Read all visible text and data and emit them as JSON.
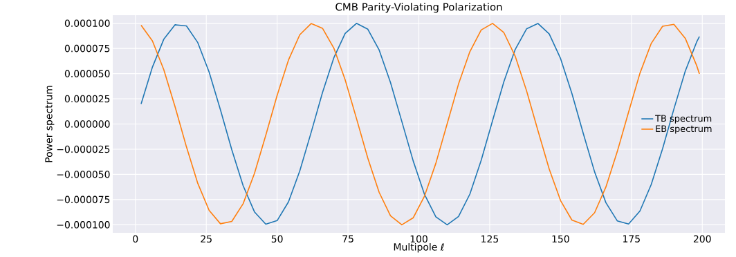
{
  "chart_data": {
    "type": "line",
    "title": "CMB Parity-Violating Polarization",
    "xlabel": "Multipole ℓ",
    "ylabel": "Power spectrum",
    "x": [
      2,
      6,
      10,
      14,
      18,
      22,
      26,
      30,
      34,
      38,
      42,
      46,
      50,
      54,
      58,
      62,
      66,
      70,
      74,
      78,
      82,
      86,
      90,
      94,
      98,
      102,
      106,
      110,
      114,
      118,
      122,
      126,
      130,
      134,
      138,
      142,
      146,
      150,
      154,
      158,
      162,
      166,
      170,
      174,
      178,
      182,
      186,
      190,
      194,
      198,
      199
    ],
    "series": [
      {
        "name": "TB spectrum",
        "color": "#1f77b4",
        "values": [
          1.99e-05,
          5.65e-05,
          8.41e-05,
          9.85e-05,
          9.74e-05,
          8.08e-05,
          5.16e-05,
          1.41e-05,
          -2.56e-05,
          -6.12e-05,
          -8.72e-05,
          -9.94e-05,
          -9.59e-05,
          -7.73e-05,
          -4.65e-05,
          -8.3e-06,
          3.12e-05,
          6.57e-05,
          8.99e-05,
          9.99e-05,
          9.41e-05,
          7.34e-05,
          4.12e-05,
          2.5e-06,
          -3.66e-05,
          -6.99e-05,
          -9.21e-05,
          -0.0001,
          -9.18e-05,
          -6.96e-05,
          -3.6e-05,
          3.3e-06,
          4.2e-05,
          7.4e-05,
          9.44e-05,
          9.98e-05,
          8.94e-05,
          6.5e-05,
          3.03e-05,
          -9.2e-06,
          -4.74e-05,
          -7.81e-05,
          -9.61e-05,
          -9.93e-05,
          -8.64e-05,
          -6e-05,
          -2.45e-05,
          1.5e-05,
          5.25e-05,
          8.13e-05,
          8.68e-05
        ]
      },
      {
        "name": "EB spectrum",
        "color": "#ff7f0e",
        "values": [
          9.8e-05,
          8.25e-05,
          5.4e-05,
          1.7e-05,
          -2.27e-05,
          -5.89e-05,
          -8.57e-05,
          -9.9e-05,
          -9.67e-05,
          -7.91e-05,
          -4.9e-05,
          -1.12e-05,
          2.84e-05,
          6.35e-05,
          8.86e-05,
          9.97e-05,
          9.5e-05,
          7.54e-05,
          4.39e-05,
          5.4e-06,
          -3.4e-05,
          -6.79e-05,
          -9.11e-05,
          -0.0001,
          -9.31e-05,
          -7.15e-05,
          -3.9e-05,
          4e-07,
          3.97e-05,
          7.18e-05,
          9.33e-05,
          9.99e-05,
          9.07e-05,
          6.73e-05,
          3.3e-05,
          -6.3e-06,
          -4.48e-05,
          -7.6e-05,
          -9.53e-05,
          -9.96e-05,
          -8.81e-05,
          -6.25e-05,
          -2.75e-05,
          1.18e-05,
          5.03e-05,
          8e-05,
          9.7e-05,
          9.89e-05,
          8.51e-05,
          5.82e-05,
          4.97e-05
        ]
      }
    ],
    "xlim": [
      -8,
      208
    ],
    "ylim": [
      -0.000108,
      0.000108
    ],
    "xticks": [
      0,
      25,
      50,
      75,
      100,
      125,
      150,
      175,
      200
    ],
    "yticks": [
      {
        "value": -0.0001,
        "label": "−0.000100"
      },
      {
        "value": -7.5e-05,
        "label": "−0.000075"
      },
      {
        "value": -5e-05,
        "label": "−0.000050"
      },
      {
        "value": -2.5e-05,
        "label": "−0.000025"
      },
      {
        "value": 0,
        "label": "0.000000"
      },
      {
        "value": 2.5e-05,
        "label": "0.000025"
      },
      {
        "value": 5e-05,
        "label": "0.000050"
      },
      {
        "value": 7.5e-05,
        "label": "0.000075"
      },
      {
        "value": 0.0001,
        "label": "0.000100"
      }
    ],
    "grid": true,
    "legend": "right"
  }
}
